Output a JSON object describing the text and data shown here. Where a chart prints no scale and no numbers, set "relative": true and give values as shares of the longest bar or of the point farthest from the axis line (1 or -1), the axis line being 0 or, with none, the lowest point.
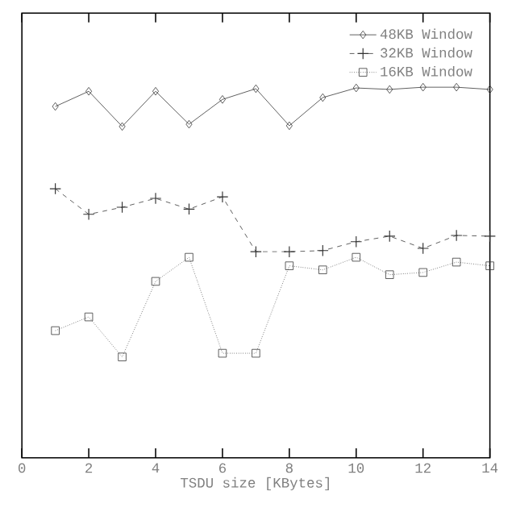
{
  "chart_data": {
    "type": "line",
    "relative": true,
    "xlabel": "TSDU size [KBytes]",
    "x": [
      1,
      2,
      3,
      4,
      5,
      6,
      7,
      8,
      9,
      10,
      11,
      12,
      13,
      14
    ],
    "xlim": [
      0,
      14
    ],
    "xticks": [
      0,
      2,
      4,
      6,
      8,
      10,
      12,
      14
    ],
    "legend": "top right",
    "series": [
      {
        "name": "48KB Window",
        "color": "#333333",
        "marker": "diamond",
        "line_style": "solid",
        "values": [
          0.948,
          0.989,
          0.894,
          0.989,
          0.9,
          0.967,
          0.996,
          0.896,
          0.972,
          0.998,
          0.994,
          1.0,
          1.0,
          0.994
        ]
      },
      {
        "name": "32KB Window",
        "color": "#333333",
        "marker": "cross",
        "line_style": "dashed",
        "values": [
          0.726,
          0.657,
          0.676,
          0.7,
          0.671,
          0.704,
          0.556,
          0.556,
          0.559,
          0.583,
          0.598,
          0.565,
          0.6,
          0.598
        ]
      },
      {
        "name": "16KB Window",
        "color": "#333333",
        "marker": "square",
        "line_style": "dotted",
        "values": [
          0.343,
          0.38,
          0.272,
          0.476,
          0.541,
          0.282,
          0.282,
          0.518,
          0.507,
          0.541,
          0.494,
          0.5,
          0.528,
          0.518
        ]
      }
    ]
  }
}
